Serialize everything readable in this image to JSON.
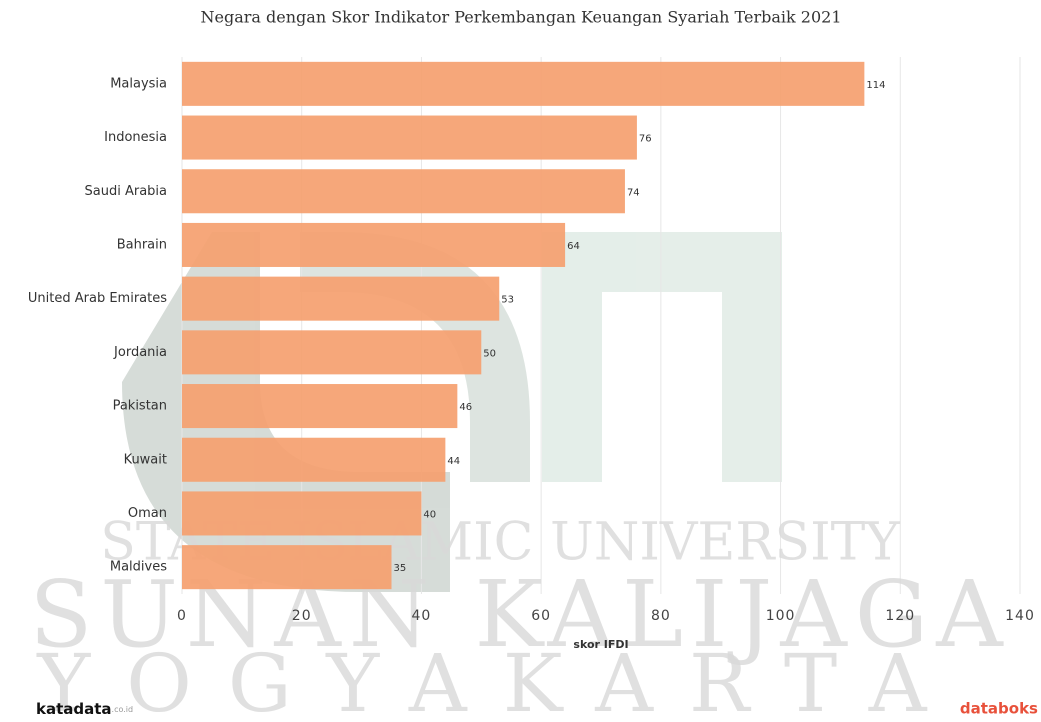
{
  "chart_data": {
    "type": "bar",
    "orientation": "horizontal",
    "title": "Negara dengan Skor Indikator Perkembangan Keuangan Syariah Terbaik 2021",
    "categories": [
      "Malaysia",
      "Indonesia",
      "Saudi Arabia",
      "Bahrain",
      "United Arab Emirates",
      "Jordania",
      "Pakistan",
      "Kuwait",
      "Oman",
      "Maldives"
    ],
    "values": [
      114,
      76,
      74,
      64,
      53,
      50,
      46,
      44,
      40,
      35
    ],
    "color": "#f5a06f",
    "xlabel": "skor IFDI",
    "xlim": [
      0,
      140
    ],
    "xticks": [
      0,
      20,
      40,
      60,
      80,
      100,
      120,
      140
    ],
    "grid": true
  },
  "watermark": [
    "STATE ISLAMIC UNIVERSITY",
    "SUNAN KALIJAGA",
    "YOGYAKARTA"
  ],
  "logos": {
    "left": "katadata",
    "left_suffix": ".co.id",
    "right": "databoks"
  }
}
